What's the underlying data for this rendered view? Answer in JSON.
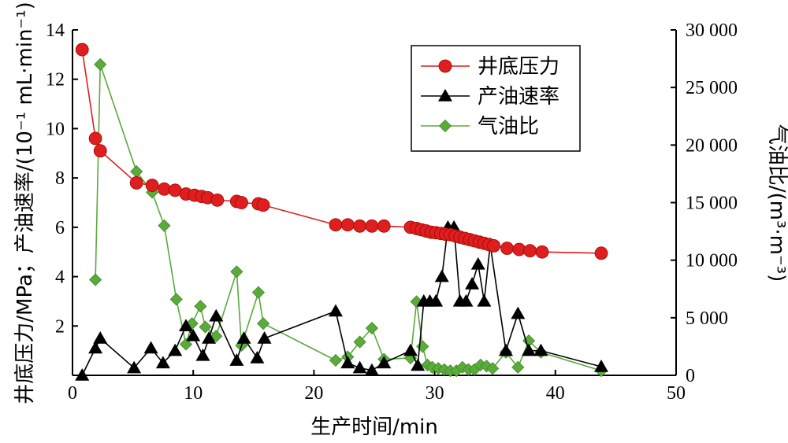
{
  "chart_data": {
    "type": "line",
    "xlabel": "生产时间/min",
    "ylabel_left": "井底压力/MPa；产油速率/(10⁻¹ mL·min⁻¹)",
    "ylabel_right": "气油比/(m³·m⁻³)",
    "xlim": [
      0,
      50
    ],
    "ylim_left": [
      0,
      14
    ],
    "ylim_right": [
      0,
      30000
    ],
    "x_ticks": [
      "0",
      "10",
      "20",
      "30",
      "40",
      "50"
    ],
    "y_left_ticks": [
      "2",
      "4",
      "6",
      "8",
      "10",
      "12",
      "14"
    ],
    "y_right_ticks": [
      "0",
      "5 000",
      "10 000",
      "15 000",
      "20 000",
      "25 000",
      "30 000"
    ],
    "legend_position": "top-right",
    "series": [
      {
        "name": "井底压力",
        "axis": "left",
        "color": "#dd1f1f",
        "marker": "circle",
        "x": [
          0.8,
          1.9,
          2.3,
          5.3,
          6.6,
          7.6,
          8.5,
          9.4,
          10.1,
          10.7,
          11.2,
          12.0,
          13.6,
          14.0,
          15.4,
          15.8,
          21.8,
          22.8,
          23.8,
          24.8,
          25.8,
          28.0,
          28.5,
          28.9,
          29.3,
          29.7,
          30.1,
          30.5,
          30.9,
          31.3,
          31.7,
          32.1,
          32.5,
          32.9,
          33.3,
          33.7,
          34.1,
          34.5,
          34.9,
          36.0,
          37.0,
          37.9,
          38.9,
          43.8
        ],
        "y": [
          13.2,
          9.6,
          9.1,
          7.8,
          7.7,
          7.55,
          7.5,
          7.35,
          7.3,
          7.25,
          7.2,
          7.1,
          7.05,
          7.0,
          6.95,
          6.9,
          6.1,
          6.1,
          6.05,
          6.05,
          6.05,
          6.0,
          5.95,
          5.9,
          5.85,
          5.8,
          5.78,
          5.75,
          5.72,
          5.7,
          5.65,
          5.6,
          5.55,
          5.5,
          5.45,
          5.4,
          5.35,
          5.3,
          5.25,
          5.15,
          5.1,
          5.05,
          5.0,
          4.95
        ]
      },
      {
        "name": "产油速率",
        "axis": "left",
        "color": "#000000",
        "marker": "triangle",
        "x": [
          0.8,
          1.9,
          2.3,
          5.1,
          6.5,
          7.5,
          8.5,
          9.4,
          10.0,
          10.8,
          11.3,
          11.9,
          13.6,
          14.2,
          15.3,
          15.9,
          21.8,
          22.8,
          23.8,
          24.8,
          25.8,
          28.0,
          28.6,
          29.1,
          29.6,
          30.1,
          30.6,
          31.1,
          31.6,
          32.1,
          32.6,
          33.1,
          33.6,
          34.1,
          34.6,
          35.9,
          36.9,
          37.8,
          38.8,
          43.8
        ],
        "y": [
          0.0,
          1.1,
          1.5,
          0.3,
          1.1,
          0.5,
          1.0,
          2.0,
          1.6,
          0.8,
          1.5,
          2.4,
          0.6,
          1.5,
          0.7,
          1.5,
          2.6,
          0.5,
          0.3,
          0.2,
          0.5,
          1.0,
          0.4,
          3.0,
          3.0,
          3.0,
          4.0,
          6.0,
          6.0,
          3.0,
          3.0,
          3.7,
          4.5,
          3.0,
          5.3,
          1.0,
          2.5,
          1.0,
          1.0,
          0.35
        ]
      },
      {
        "name": "气油比",
        "axis": "right",
        "color": "#5aaa3c",
        "marker": "diamond",
        "x": [
          1.9,
          2.3,
          5.3,
          6.6,
          7.6,
          8.6,
          9.4,
          9.9,
          10.6,
          11.0,
          11.9,
          13.6,
          14.0,
          15.4,
          15.8,
          21.8,
          22.8,
          23.8,
          24.8,
          25.8,
          28.0,
          28.5,
          29.0,
          29.4,
          29.8,
          30.3,
          30.8,
          31.3,
          31.8,
          32.3,
          32.8,
          33.3,
          33.8,
          34.3,
          34.8,
          35.9,
          36.9,
          37.8,
          38.8,
          43.8
        ],
        "y": [
          8300,
          27000,
          17700,
          15900,
          13000,
          6600,
          2700,
          4500,
          6000,
          4200,
          3400,
          9000,
          2600,
          7200,
          4500,
          1300,
          1600,
          2900,
          4100,
          1400,
          1500,
          6400,
          2500,
          900,
          700,
          600,
          500,
          400,
          400,
          700,
          500,
          500,
          900,
          800,
          600,
          2000,
          700,
          3000,
          2000,
          400
        ]
      }
    ]
  }
}
